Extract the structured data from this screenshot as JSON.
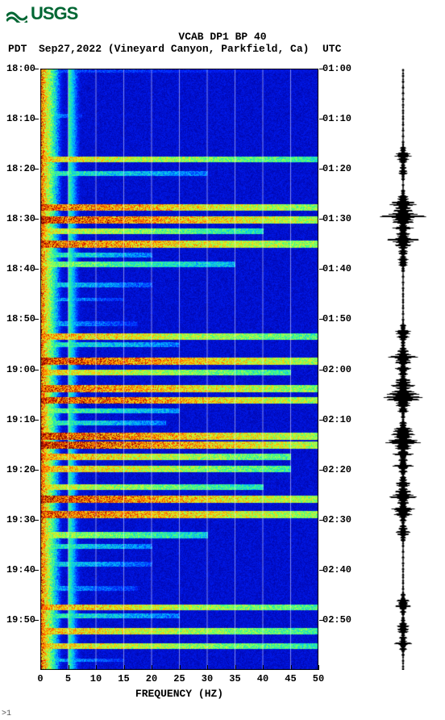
{
  "logo": {
    "text": "USGS",
    "color": "#006633"
  },
  "header": {
    "title": "VCAB DP1 BP 40",
    "left_tz": "PDT",
    "date_loc": "Sep27,2022 (Vineyard Canyon, Parkfield, Ca)",
    "right_tz": "UTC"
  },
  "axes": {
    "x_title": "FREQUENCY (HZ)",
    "x_ticks": [
      0,
      5,
      10,
      15,
      20,
      25,
      30,
      35,
      40,
      45,
      50
    ],
    "xlim": [
      0,
      50
    ],
    "y_left_labels": [
      "18:00",
      "18:10",
      "18:20",
      "18:30",
      "18:40",
      "18:50",
      "19:00",
      "19:10",
      "19:20",
      "19:30",
      "19:40",
      "19:50"
    ],
    "y_right_labels": [
      "01:00",
      "01:10",
      "01:20",
      "01:30",
      "01:40",
      "01:50",
      "02:00",
      "02:10",
      "02:20",
      "02:30",
      "02:40",
      "02:50"
    ],
    "y_fraction_positions": [
      0.0,
      0.0833,
      0.1667,
      0.25,
      0.3333,
      0.4167,
      0.5,
      0.5833,
      0.6667,
      0.75,
      0.8333,
      0.9167
    ],
    "label_fontsize": 12,
    "title_fontsize": 13
  },
  "spectrogram": {
    "type": "spectrogram",
    "colormap_stops": [
      "#000033",
      "#000099",
      "#0020ff",
      "#00c0ff",
      "#40ff80",
      "#c0ff40",
      "#ffc000",
      "#ff4000",
      "#800000"
    ],
    "background_color": "#0000a0",
    "grid_color": "#ffffff",
    "grid_x_ticks": [
      5,
      10,
      15,
      20,
      25,
      30,
      35,
      40,
      45
    ],
    "low_freq_band_intensity": 0.95,
    "events": [
      {
        "t": 0.0,
        "dur": 0.006,
        "fmax": 1.0,
        "intensity": 0.3
      },
      {
        "t": 0.075,
        "dur": 0.006,
        "fmax": 0.15,
        "intensity": 0.4
      },
      {
        "t": 0.145,
        "dur": 0.01,
        "fmax": 1.0,
        "intensity": 0.75
      },
      {
        "t": 0.17,
        "dur": 0.008,
        "fmax": 0.6,
        "intensity": 0.5
      },
      {
        "t": 0.225,
        "dur": 0.01,
        "fmax": 1.0,
        "intensity": 0.9
      },
      {
        "t": 0.245,
        "dur": 0.012,
        "fmax": 1.0,
        "intensity": 0.95
      },
      {
        "t": 0.265,
        "dur": 0.01,
        "fmax": 0.8,
        "intensity": 0.7
      },
      {
        "t": 0.285,
        "dur": 0.012,
        "fmax": 1.0,
        "intensity": 0.9
      },
      {
        "t": 0.305,
        "dur": 0.008,
        "fmax": 0.4,
        "intensity": 0.5
      },
      {
        "t": 0.32,
        "dur": 0.01,
        "fmax": 0.7,
        "intensity": 0.6
      },
      {
        "t": 0.355,
        "dur": 0.008,
        "fmax": 0.4,
        "intensity": 0.45
      },
      {
        "t": 0.38,
        "dur": 0.006,
        "fmax": 0.3,
        "intensity": 0.4
      },
      {
        "t": 0.42,
        "dur": 0.008,
        "fmax": 0.35,
        "intensity": 0.4
      },
      {
        "t": 0.44,
        "dur": 0.01,
        "fmax": 1.0,
        "intensity": 0.8
      },
      {
        "t": 0.455,
        "dur": 0.008,
        "fmax": 0.5,
        "intensity": 0.5
      },
      {
        "t": 0.48,
        "dur": 0.012,
        "fmax": 1.0,
        "intensity": 0.95
      },
      {
        "t": 0.5,
        "dur": 0.01,
        "fmax": 0.9,
        "intensity": 0.75
      },
      {
        "t": 0.525,
        "dur": 0.012,
        "fmax": 1.0,
        "intensity": 0.9
      },
      {
        "t": 0.545,
        "dur": 0.012,
        "fmax": 1.0,
        "intensity": 0.95
      },
      {
        "t": 0.565,
        "dur": 0.008,
        "fmax": 0.5,
        "intensity": 0.55
      },
      {
        "t": 0.585,
        "dur": 0.008,
        "fmax": 0.45,
        "intensity": 0.5
      },
      {
        "t": 0.605,
        "dur": 0.012,
        "fmax": 1.0,
        "intensity": 0.95
      },
      {
        "t": 0.62,
        "dur": 0.012,
        "fmax": 1.0,
        "intensity": 0.98
      },
      {
        "t": 0.64,
        "dur": 0.01,
        "fmax": 0.9,
        "intensity": 0.8
      },
      {
        "t": 0.66,
        "dur": 0.01,
        "fmax": 0.9,
        "intensity": 0.78
      },
      {
        "t": 0.69,
        "dur": 0.01,
        "fmax": 0.8,
        "intensity": 0.7
      },
      {
        "t": 0.71,
        "dur": 0.012,
        "fmax": 1.0,
        "intensity": 0.95
      },
      {
        "t": 0.735,
        "dur": 0.012,
        "fmax": 1.0,
        "intensity": 0.92
      },
      {
        "t": 0.77,
        "dur": 0.01,
        "fmax": 0.6,
        "intensity": 0.65
      },
      {
        "t": 0.79,
        "dur": 0.008,
        "fmax": 0.4,
        "intensity": 0.5
      },
      {
        "t": 0.82,
        "dur": 0.008,
        "fmax": 0.4,
        "intensity": 0.45
      },
      {
        "t": 0.86,
        "dur": 0.008,
        "fmax": 0.35,
        "intensity": 0.4
      },
      {
        "t": 0.89,
        "dur": 0.01,
        "fmax": 1.0,
        "intensity": 0.8
      },
      {
        "t": 0.905,
        "dur": 0.008,
        "fmax": 0.5,
        "intensity": 0.5
      },
      {
        "t": 0.93,
        "dur": 0.01,
        "fmax": 1.0,
        "intensity": 0.78
      },
      {
        "t": 0.955,
        "dur": 0.01,
        "fmax": 1.0,
        "intensity": 0.75
      },
      {
        "t": 0.98,
        "dur": 0.006,
        "fmax": 0.3,
        "intensity": 0.4
      }
    ]
  },
  "seismogram": {
    "type": "waveform",
    "line_color": "#000000",
    "background_color": "#ffffff",
    "base_amplitude": 0.04,
    "burst_shape_decay": 8.0,
    "events": [
      {
        "t": 0.145,
        "amp": 0.35
      },
      {
        "t": 0.17,
        "amp": 0.2
      },
      {
        "t": 0.225,
        "amp": 0.55
      },
      {
        "t": 0.245,
        "amp": 0.85
      },
      {
        "t": 0.265,
        "amp": 0.35
      },
      {
        "t": 0.285,
        "amp": 0.6
      },
      {
        "t": 0.305,
        "amp": 0.2
      },
      {
        "t": 0.32,
        "amp": 0.25
      },
      {
        "t": 0.44,
        "amp": 0.35
      },
      {
        "t": 0.48,
        "amp": 0.55
      },
      {
        "t": 0.5,
        "amp": 0.3
      },
      {
        "t": 0.525,
        "amp": 0.5
      },
      {
        "t": 0.545,
        "amp": 0.9
      },
      {
        "t": 0.565,
        "amp": 0.25
      },
      {
        "t": 0.605,
        "amp": 0.55
      },
      {
        "t": 0.62,
        "amp": 0.7
      },
      {
        "t": 0.64,
        "amp": 0.35
      },
      {
        "t": 0.66,
        "amp": 0.35
      },
      {
        "t": 0.69,
        "amp": 0.3
      },
      {
        "t": 0.71,
        "amp": 0.55
      },
      {
        "t": 0.735,
        "amp": 0.5
      },
      {
        "t": 0.77,
        "amp": 0.3
      },
      {
        "t": 0.89,
        "amp": 0.35
      },
      {
        "t": 0.93,
        "amp": 0.3
      },
      {
        "t": 0.955,
        "amp": 0.3
      }
    ]
  },
  "footer_mark": ">1"
}
